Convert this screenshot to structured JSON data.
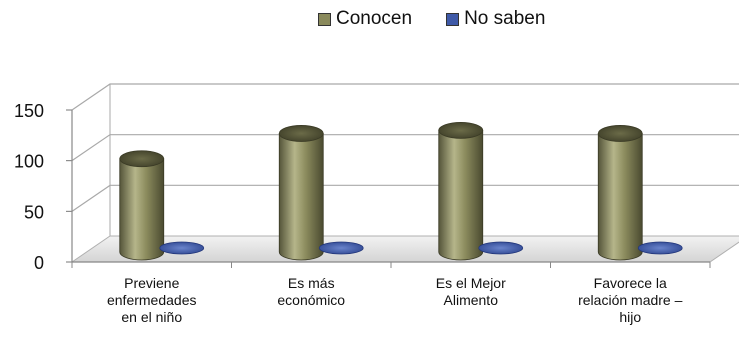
{
  "chart_data": {
    "type": "bar",
    "style": "3d-cylinder",
    "categories": [
      [
        "Previene",
        "enfermedades",
        "en el niño"
      ],
      [
        "Es más",
        "económico"
      ],
      [
        "Es el Mejor",
        "Alimento"
      ],
      [
        "Favorece la",
        "relación madre –",
        "hijo"
      ]
    ],
    "series": [
      {
        "name": "Conocen",
        "values": [
          92,
          117,
          120,
          117
        ],
        "color": "#8a8a5c"
      },
      {
        "name": "No saben",
        "values": [
          1,
          1,
          1,
          1
        ],
        "color": "#3f5aa8"
      }
    ],
    "ylim": [
      0,
      150
    ],
    "yticks": [
      "0",
      "50",
      "100",
      "150"
    ],
    "legend_position": "top",
    "grid": true
  }
}
